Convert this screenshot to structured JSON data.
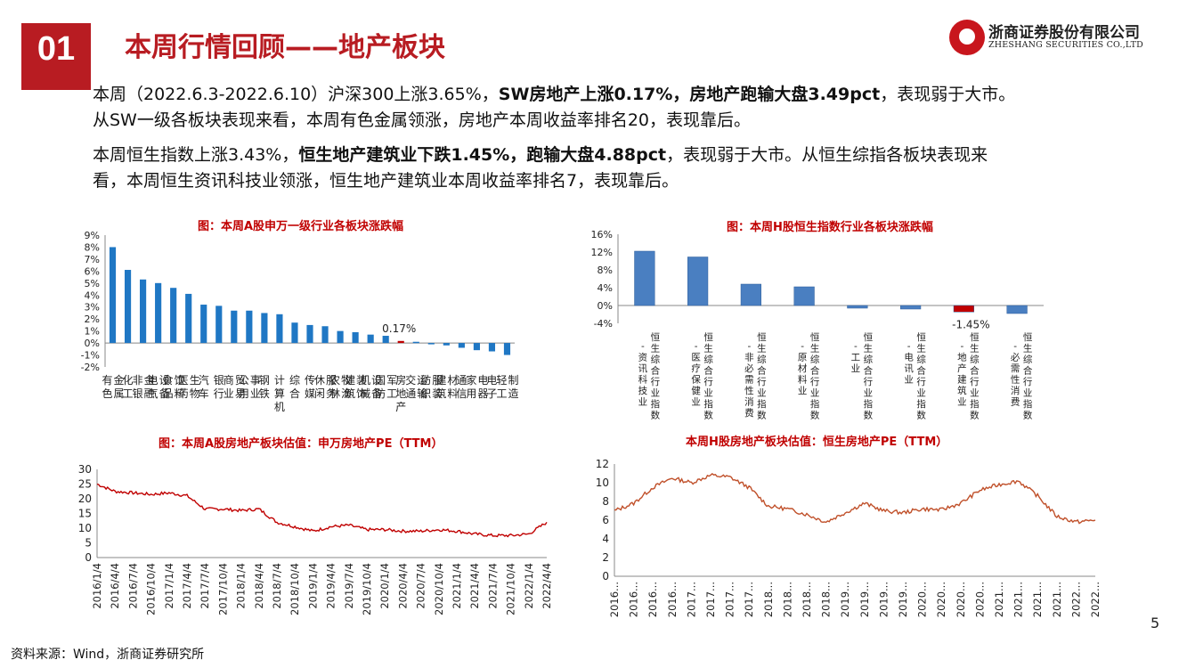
{
  "header": {
    "section_number": "01",
    "title": "本周行情回顾——地产板块",
    "company_cn": "浙商证券股份有限公司",
    "company_en": "ZHESHANG SECURITIES CO.,LTD"
  },
  "paragraphs": {
    "p1": {
      "a": "本周（2022.6.3-2022.6.10）沪深300上涨3.65%，",
      "b": "SW房地产上涨0.17%，房地产跑输大盘3.49pct",
      "c": "，表现弱于大市。",
      "d": "从SW一级各板块表现来看，本周有色金属领涨，房地产本周收益率排名20，表现靠后。"
    },
    "p2": {
      "a": "本周恒生指数上涨3.43%，",
      "b": "恒生地产建筑业下跌1.45%，跑输大盘4.88pct",
      "c": "，表现弱于大市。从恒生综指各板块表现来",
      "d": "看，本周恒生资讯科技业领涨，恒生地产建筑业本周收益率排名7，表现靠后。"
    }
  },
  "footer": {
    "source": "资料来源：Wind，浙商证券研究所",
    "page": "5"
  },
  "chart_data": [
    {
      "type": "bar",
      "title": "图：本周A股申万一级行业各板块涨跌幅",
      "categories": [
        "有色金属",
        "化工",
        "非银金融",
        "电气设备",
        "食品饮料",
        "医药生物",
        "汽车",
        "银行",
        "商业贸易",
        "公用事业",
        "钢铁",
        "计算机",
        "综合",
        "传媒",
        "休闲服务",
        "农林牧渔",
        "建筑装饰",
        "机械设备",
        "国防军工",
        "房地产",
        "交通运输",
        "纺织服装",
        "建筑材料",
        "通信",
        "家用电器",
        "电子",
        "轻工制造"
      ],
      "values": [
        8.0,
        6.1,
        5.3,
        5.0,
        4.6,
        4.1,
        3.2,
        3.1,
        2.7,
        2.7,
        2.5,
        2.4,
        1.7,
        1.5,
        1.4,
        1.0,
        0.9,
        0.7,
        0.6,
        0.17,
        0.1,
        -0.1,
        -0.2,
        -0.4,
        -0.6,
        -0.7,
        -1.0
      ],
      "ylim": [
        -2,
        9
      ],
      "yticks": [
        "9%",
        "8%",
        "7%",
        "6%",
        "5%",
        "4%",
        "3%",
        "2%",
        "1%",
        "0%",
        "-1%",
        "-2%"
      ],
      "highlight_index": 19,
      "annotation": "0.17%",
      "colors": {
        "bar": "#1f77c4",
        "highlight": "#c00000"
      }
    },
    {
      "type": "bar",
      "title": "图：本周H股恒生指数行业各板块涨跌幅",
      "categories": [
        "恒生综合行业指数-资讯科技业",
        "恒生综合行业指数-医疗保健业",
        "恒生综合行业指数-非必需性消费",
        "恒生综合行业指数-原材料业",
        "恒生综合行业指数-工业",
        "恒生综合行业指数-电讯业",
        "恒生综合行业指数-地产建筑业",
        "恒生综合行业指数-必需性消费"
      ],
      "values": [
        12.2,
        10.9,
        4.8,
        4.2,
        -0.6,
        -0.8,
        -1.45,
        -1.8
      ],
      "ylim": [
        -4,
        16
      ],
      "yticks": [
        "16%",
        "12%",
        "8%",
        "4%",
        "0%",
        "-4%"
      ],
      "highlight_index": 6,
      "annotation": "-1.45%",
      "colors": {
        "bar": "#4a7fc1",
        "highlight": "#c00000"
      }
    },
    {
      "type": "line",
      "title": "图：本周A股房地产板块估值：申万房地产PE（TTM）",
      "x_labels": [
        "2016/1/4",
        "2016/4/4",
        "2016/7/4",
        "2016/10/4",
        "2017/1/4",
        "2017/4/4",
        "2017/7/4",
        "2017/10/4",
        "2018/1/4",
        "2018/4/4",
        "2018/7/4",
        "2018/10/4",
        "2019/1/4",
        "2019/4/4",
        "2019/7/4",
        "2019/10/4",
        "2020/1/4",
        "2020/4/4",
        "2020/7/4",
        "2020/10/4",
        "2021/1/4",
        "2021/4/4",
        "2021/7/4",
        "2021/10/4",
        "2022/1/4",
        "2022/4/4"
      ],
      "values": [
        25,
        22.5,
        22,
        21.5,
        22,
        21,
        16.5,
        16.5,
        16,
        16.5,
        12,
        10.5,
        9,
        10.5,
        11,
        9.5,
        9.5,
        9,
        9,
        9.5,
        9,
        8,
        7.5,
        7.5,
        8,
        12
      ],
      "ylim": [
        0,
        30
      ],
      "yticks": [
        "30",
        "25",
        "20",
        "15",
        "10",
        "5",
        "0"
      ],
      "colors": {
        "line": "#c00000"
      }
    },
    {
      "type": "line",
      "title": "本周H股房地产板块估值：恒生房地产PE（TTM）",
      "x_labels": [
        "2016...",
        "2016...",
        "2016...",
        "2016...",
        "2017...",
        "2017...",
        "2017...",
        "2017...",
        "2018...",
        "2018...",
        "2018...",
        "2018...",
        "2019...",
        "2019...",
        "2019...",
        "2019...",
        "2020...",
        "2020...",
        "2020...",
        "2020...",
        "2021...",
        "2021...",
        "2021...",
        "2021...",
        "2022...",
        "2022..."
      ],
      "values": [
        7,
        7.8,
        9.5,
        10.5,
        10,
        10.8,
        10.6,
        9.5,
        7.5,
        7.2,
        6.6,
        5.8,
        6.8,
        7.8,
        7.0,
        6.8,
        7.2,
        7.1,
        7.8,
        9.2,
        9.8,
        10.2,
        8.6,
        6.4,
        5.8,
        6.0
      ],
      "ylim": [
        0,
        12
      ],
      "yticks": [
        "12",
        "10",
        "8",
        "6",
        "4",
        "2",
        "0"
      ],
      "colors": {
        "line": "#c0502a"
      }
    }
  ]
}
